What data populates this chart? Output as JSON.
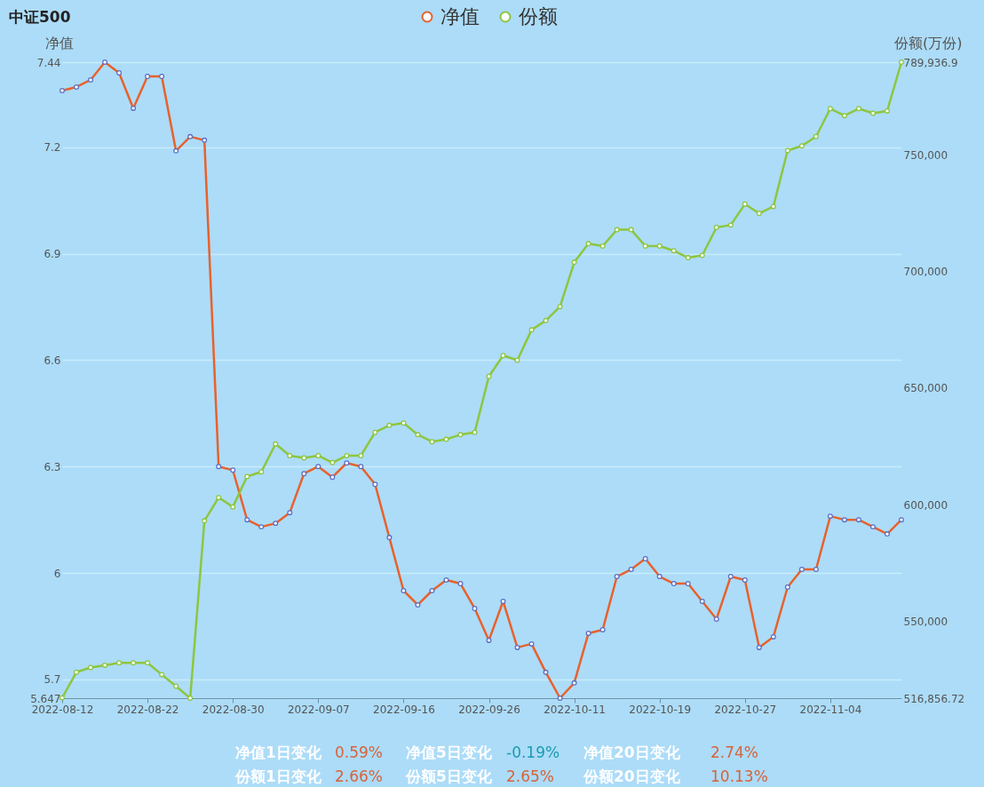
{
  "chart_data": {
    "type": "line",
    "title": "中证500",
    "ylabel": "净值",
    "y2label": "份额(万份)",
    "categories": [
      "2022-08-12",
      null,
      null,
      null,
      null,
      null,
      "2022-08-22",
      null,
      null,
      null,
      null,
      null,
      "2022-08-30",
      null,
      null,
      null,
      null,
      null,
      "2022-09-07",
      null,
      null,
      null,
      null,
      null,
      "2022-09-16",
      null,
      null,
      null,
      null,
      null,
      "2022-09-26",
      null,
      null,
      null,
      null,
      null,
      "2022-10-11",
      null,
      null,
      null,
      null,
      null,
      "2022-10-19",
      null,
      null,
      null,
      null,
      null,
      "2022-10-27",
      null,
      null,
      null,
      null,
      null,
      "2022-11-04",
      null,
      null,
      null,
      null,
      null
    ],
    "series": [
      {
        "name": "净值",
        "color": "#e8612c",
        "values": [
          7.36,
          7.37,
          7.39,
          7.44,
          7.41,
          7.31,
          7.4,
          7.4,
          7.19,
          7.23,
          7.22,
          6.3,
          6.29,
          6.15,
          6.13,
          6.14,
          6.17,
          6.28,
          6.3,
          6.27,
          6.31,
          6.3,
          6.25,
          6.1,
          5.95,
          5.91,
          5.95,
          5.98,
          5.97,
          5.9,
          5.81,
          5.92,
          5.79,
          5.8,
          5.72,
          5.647,
          5.69,
          5.83,
          5.84,
          5.99,
          6.01,
          6.04,
          5.99,
          5.97,
          5.97,
          5.92,
          5.87,
          5.99,
          5.98,
          5.79,
          5.82,
          5.96,
          6.01,
          6.01,
          6.16,
          6.15,
          6.15,
          6.13,
          6.11,
          6.15
        ]
      },
      {
        "name": "份额",
        "color": "#8dc63f",
        "axis": "y2",
        "values": [
          517000,
          528000,
          530000,
          531000,
          532000,
          532000,
          532000,
          527000,
          522000,
          516856.72,
          593000,
          603000,
          599000,
          612000,
          614000,
          626000,
          621000,
          620000,
          621000,
          618000,
          621000,
          621000,
          631000,
          634000,
          635000,
          630000,
          627000,
          628000,
          630000,
          631000,
          655000,
          664000,
          662000,
          675000,
          679000,
          685000,
          704000,
          712000,
          711000,
          718000,
          718000,
          711000,
          711000,
          709000,
          706000,
          707000,
          719000,
          720000,
          729000,
          725000,
          728000,
          752000,
          754000,
          758000,
          770000,
          767000,
          770000,
          768000,
          769000,
          789936.9
        ]
      }
    ],
    "ylim": [
      5.647,
      7.44
    ],
    "yticks": [
      5.647,
      5.7,
      6,
      6.3,
      6.6,
      6.9,
      7.2,
      7.44
    ],
    "y2lim": [
      516856.72,
      789936.9
    ],
    "y2ticks": [
      {
        "value": 516856.72,
        "label": "516,856.72"
      },
      {
        "value": 550000,
        "label": "550,000"
      },
      {
        "value": 600000,
        "label": "600,000"
      },
      {
        "value": 650000,
        "label": "650,000"
      },
      {
        "value": 700000,
        "label": "700,000"
      },
      {
        "value": 750000,
        "label": "750,000"
      },
      {
        "value": 789936.9,
        "label": "789,936.9"
      }
    ],
    "grid": "y",
    "legend": "top",
    "marker": "circle",
    "line_style": "solid",
    "annotations": [
      "净值1日变化",
      "0.59%",
      "净值5日变化",
      "-0.19%",
      "净值20日变化",
      "2.74%",
      "份额1日变化",
      "2.66%",
      "份额5日变化",
      "2.65%",
      "份额20日变化",
      "10.13%"
    ]
  }
}
